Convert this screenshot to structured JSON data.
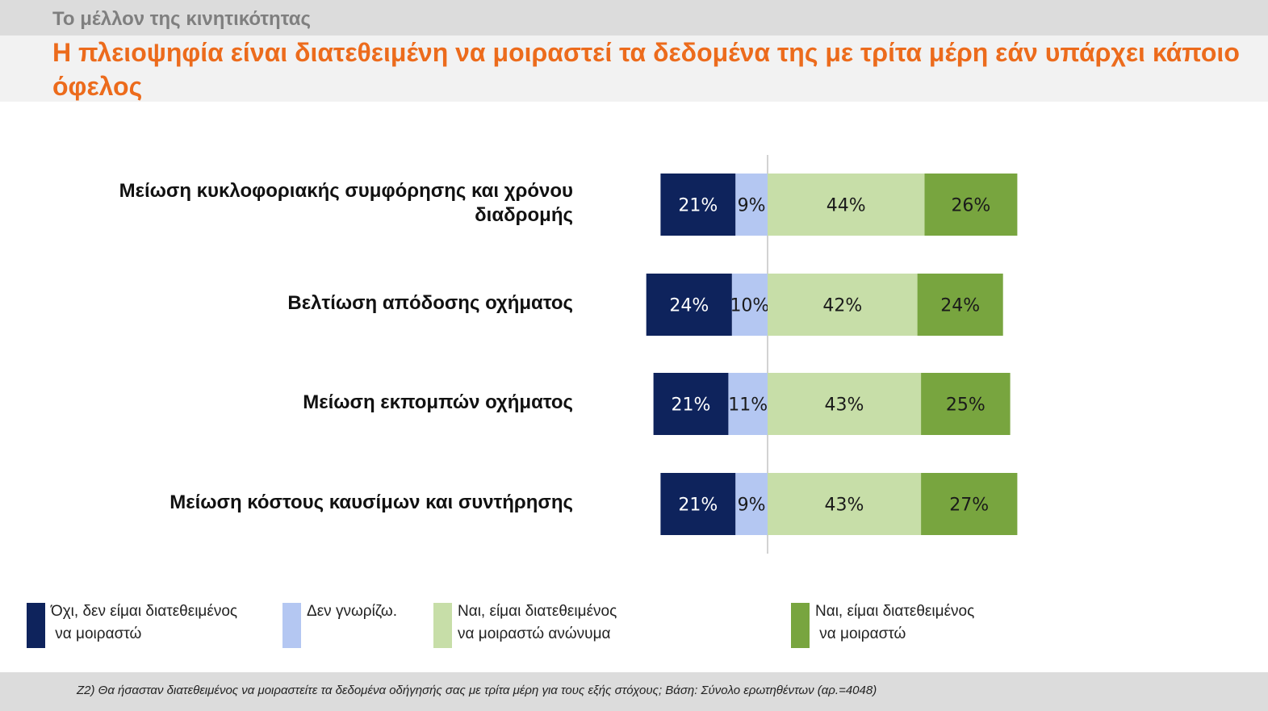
{
  "header": {
    "section_title": "Το μέλλον της κινητικότητας",
    "headline": "Η πλειοψηφία είναι διατεθειμένη να μοιραστεί τα δεδομένα της με τρίτα μέρη εάν υπάρχει κάποιο όφελος"
  },
  "colors": {
    "dark_navy": "#0e235c",
    "light_blue": "#b4c7f2",
    "light_green": "#c7dea8",
    "dark_green": "#78a53f",
    "headline_orange": "#ec6b1c"
  },
  "chart_data": {
    "type": "bar",
    "orientation": "horizontal-diverging",
    "stacked": true,
    "baseline": "between 'Δεν γνωρίζω.' and the 'Ναι' series",
    "categories": [
      "Μείωση κυκλοφοριακής συμφόρησης και χρόνου διαδρομής",
      "Βελτίωση απόδοσης οχήματος",
      "Μείωση εκπομπών οχήματος",
      "Μείωση κόστους καυσίμων και συντήρησης"
    ],
    "series": [
      {
        "name": "Όχι, δεν είμαι διατεθειμένος\n να μοιραστώ",
        "side": "negative",
        "color": "#0e235c",
        "label_color": "#ffffff",
        "values": [
          21,
          24,
          21,
          21
        ],
        "labels": [
          "21%",
          "24%",
          "21%",
          "21%"
        ]
      },
      {
        "name": "Δεν γνωρίζω.",
        "side": "negative",
        "color": "#b4c7f2",
        "label_color": "#1a1a1a",
        "values": [
          9,
          10,
          11,
          9
        ],
        "labels": [
          "9%",
          "10%",
          "11%",
          "9%"
        ]
      },
      {
        "name": "Ναι, είμαι διατεθειμένος\nνα μοιραστώ ανώνυμα",
        "side": "positive",
        "color": "#c7dea8",
        "label_color": "#1a1a1a",
        "values": [
          44,
          42,
          43,
          43
        ],
        "labels": [
          "44%",
          "42%",
          "43%",
          "43%"
        ]
      },
      {
        "name": "Ναι, είμαι διατεθειμένος\n να μοιραστώ",
        "side": "positive",
        "color": "#78a53f",
        "label_color": "#1a1a1a",
        "values": [
          26,
          24,
          25,
          27
        ],
        "labels": [
          "26%",
          "24%",
          "25%",
          "27%"
        ]
      }
    ],
    "legend": "bottom",
    "grid": false
  },
  "footnote": "Z2) Θα ήσασταν διατεθειμένος να μοιραστείτε τα δεδομένα οδήγησής σας με τρίτα μέρη για τους εξής στόχους; Βάση: Σύνολο ερωτηθέντων (αρ.=4048)"
}
